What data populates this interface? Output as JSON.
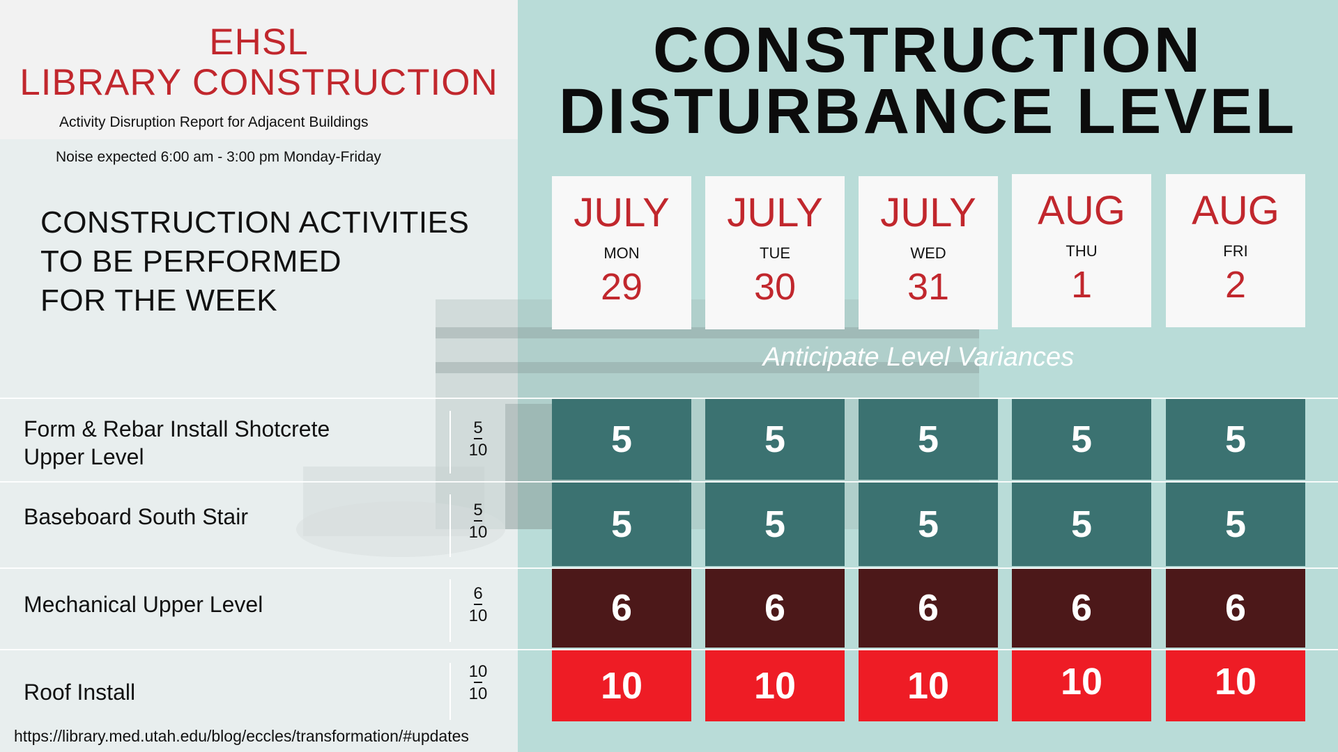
{
  "header": {
    "title_line1": "EHSL",
    "title_line2": "LIBRARY CONSTRUCTION",
    "subtitle": "Activity Disruption Report for Adjacent Buildings",
    "noise_note": "Noise expected 6:00 am - 3:00 pm Monday-Friday"
  },
  "activities_heading": {
    "line1": "CONSTRUCTION ACTIVITIES",
    "line2": "TO BE PERFORMED",
    "line3": "FOR THE WEEK"
  },
  "main_title": {
    "line1": "CONSTRUCTION",
    "line2": "DISTURBANCE LEVEL"
  },
  "days": [
    {
      "month": "JULY",
      "weekday": "MON",
      "date": "29"
    },
    {
      "month": "JULY",
      "weekday": "TUE",
      "date": "30"
    },
    {
      "month": "JULY",
      "weekday": "WED",
      "date": "31"
    },
    {
      "month": "AUG",
      "weekday": "THU",
      "date": "1"
    },
    {
      "month": "AUG",
      "weekday": "FRI",
      "date": "2"
    }
  ],
  "variance_note": "Anticipate Level Variances",
  "activities": [
    {
      "label_line1": "Form & Rebar Install Shotcrete",
      "label_line2": "Upper Level",
      "max_level": "5",
      "scale": "10",
      "levels": [
        "5",
        "5",
        "5",
        "5",
        "5"
      ],
      "severity": "moderate"
    },
    {
      "label_line1": "Baseboard South Stair",
      "label_line2": "",
      "max_level": "5",
      "scale": "10",
      "levels": [
        "5",
        "5",
        "5",
        "5",
        "5"
      ],
      "severity": "moderate"
    },
    {
      "label_line1": "Mechanical Upper Level",
      "label_line2": "",
      "max_level": "6",
      "scale": "10",
      "levels": [
        "6",
        "6",
        "6",
        "6",
        "6"
      ],
      "severity": "elevated"
    },
    {
      "label_line1": "Roof Install",
      "label_line2": "",
      "max_level": "10",
      "scale": "10",
      "levels": [
        "10",
        "10",
        "10",
        "10",
        "10"
      ],
      "severity": "high"
    }
  ],
  "colors": {
    "accent_red": "#c1272d",
    "moderate": "#3b7271",
    "elevated": "#4c1819",
    "high": "#ee1c25",
    "right_panel": "#b9dcd8"
  },
  "footer_url": "https://library.med.utah.edu/blog/eccles/transformation/#updates"
}
